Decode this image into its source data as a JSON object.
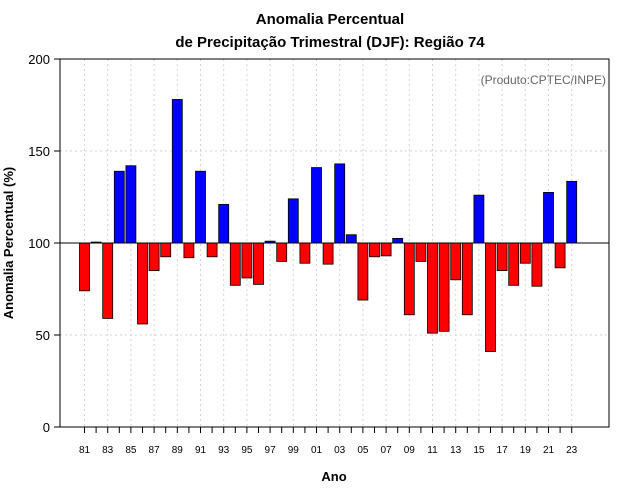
{
  "chart_data": {
    "type": "bar",
    "title_line1": "Anomalia Percentual",
    "title_line2": "de Precipitação Trimestral (DJF): Região 74",
    "xlabel": "Ano",
    "ylabel": "Anomalia Percentual (%)",
    "credit": "(Produto:CPTEC/INPE)",
    "ylim": [
      0,
      200
    ],
    "yticks": [
      0,
      50,
      100,
      150,
      200
    ],
    "baseline": 100,
    "grid": true,
    "colors": {
      "above": "#0000ff",
      "below": "#ff0000"
    },
    "years": [
      "81",
      "82",
      "83",
      "84",
      "85",
      "86",
      "87",
      "88",
      "89",
      "90",
      "91",
      "92",
      "93",
      "94",
      "95",
      "96",
      "97",
      "98",
      "99",
      "00",
      "01",
      "02",
      "03",
      "04",
      "05",
      "06",
      "07",
      "08",
      "09",
      "10",
      "11",
      "12",
      "13",
      "14",
      "15",
      "16",
      "17",
      "18",
      "19",
      "20",
      "21",
      "22",
      "23"
    ],
    "xtick_labels": [
      "81",
      "83",
      "85",
      "87",
      "89",
      "91",
      "93",
      "95",
      "97",
      "99",
      "01",
      "03",
      "05",
      "07",
      "09",
      "11",
      "13",
      "15",
      "17",
      "19",
      "21",
      "23"
    ],
    "values": [
      74,
      100.5,
      59,
      139,
      142,
      56,
      85,
      92.5,
      178,
      92,
      139,
      92.5,
      121,
      77,
      81,
      77.5,
      101,
      90,
      124,
      89,
      141,
      88.5,
      143,
      104.5,
      69,
      92.5,
      93,
      102.5,
      61,
      90,
      51,
      52,
      80,
      61,
      126,
      41,
      85,
      77,
      89,
      76.5,
      127.5,
      86.5,
      133.5
    ]
  }
}
